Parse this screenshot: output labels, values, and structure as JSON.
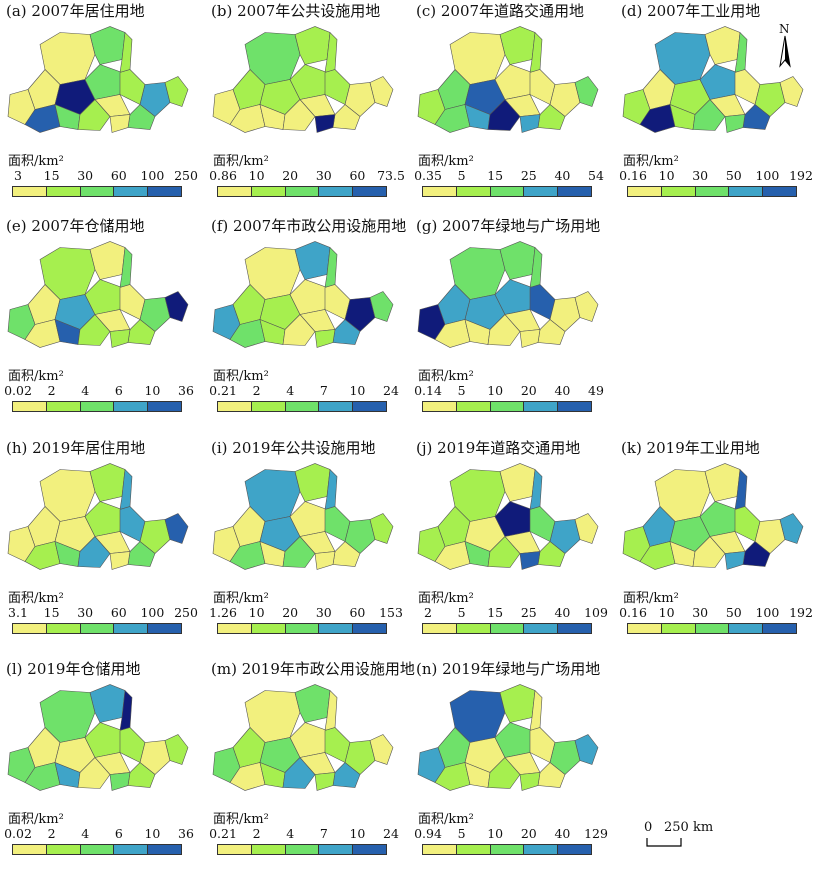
{
  "unit_label": "面积/km²",
  "colors": [
    "#f2f07e",
    "#a6ef4f",
    "#6fe16a",
    "#3fa4c8",
    "#2660ad",
    "#101b7a"
  ],
  "north": "N",
  "scale": {
    "zero": "0",
    "label": "250 km"
  },
  "panels": [
    {
      "title": "(a) 2007年居住用地",
      "ticks": [
        "3",
        "15",
        "30",
        "60",
        "100",
        "250"
      ]
    },
    {
      "title": "(b) 2007年公共设施用地",
      "ticks": [
        "0.86",
        "10",
        "20",
        "30",
        "60",
        "73.5"
      ]
    },
    {
      "title": "(c) 2007年道路交通用地",
      "ticks": [
        "0.35",
        "5",
        "15",
        "25",
        "40",
        "54"
      ]
    },
    {
      "title": "(d) 2007年工业用地",
      "ticks": [
        "0.16",
        "10",
        "30",
        "50",
        "100",
        "192"
      ]
    },
    {
      "title": "(e) 2007年仓储用地",
      "ticks": [
        "0.02",
        "2",
        "4",
        "6",
        "10",
        "36"
      ]
    },
    {
      "title": "(f) 2007年市政公用设施用地",
      "ticks": [
        "0.21",
        "2",
        "4",
        "7",
        "10",
        "24"
      ]
    },
    {
      "title": "(g) 2007年绿地与广场用地",
      "ticks": [
        "0.14",
        "5",
        "10",
        "20",
        "40",
        "49"
      ]
    },
    {
      "title": "(h) 2019年居住用地",
      "ticks": [
        "3.1",
        "15",
        "30",
        "60",
        "100",
        "250"
      ]
    },
    {
      "title": "(i) 2019年公共设施用地",
      "ticks": [
        "1.26",
        "10",
        "20",
        "30",
        "60",
        "153"
      ]
    },
    {
      "title": "(j) 2019年道路交通用地",
      "ticks": [
        "2",
        "5",
        "15",
        "25",
        "40",
        "109"
      ]
    },
    {
      "title": "(k) 2019年工业用地",
      "ticks": [
        "0.16",
        "10",
        "30",
        "50",
        "100",
        "192"
      ]
    },
    {
      "title": "(l) 2019年仓储用地",
      "ticks": [
        "0.02",
        "2",
        "4",
        "6",
        "10",
        "36"
      ]
    },
    {
      "title": "(m) 2019年市政公用设施用地",
      "ticks": [
        "0.21",
        "2",
        "4",
        "7",
        "10",
        "24"
      ]
    },
    {
      "title": "(n) 2019年绿地与广场用地",
      "ticks": [
        "0.94",
        "5",
        "10",
        "20",
        "40",
        "129"
      ]
    }
  ]
}
